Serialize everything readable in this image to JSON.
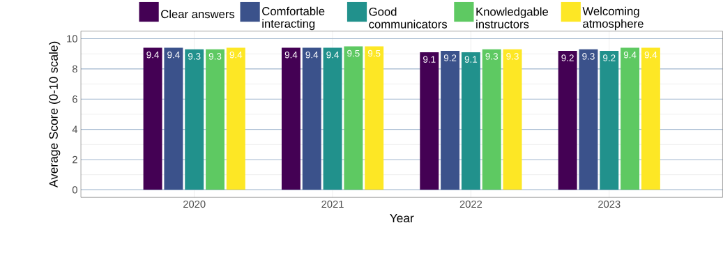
{
  "chart_data": {
    "type": "bar",
    "xlabel": "Year",
    "ylabel": "Average Score (0-10 scale)",
    "categories": [
      "2020",
      "2021",
      "2022",
      "2023"
    ],
    "series": [
      {
        "name": "Clear answers",
        "color": "#440154",
        "values": [
          9.4,
          9.4,
          9.1,
          9.2
        ]
      },
      {
        "name": "Comfortable interacting",
        "color": "#3b528b",
        "values": [
          9.4,
          9.4,
          9.2,
          9.3
        ]
      },
      {
        "name": "Good communicators",
        "color": "#21918c",
        "values": [
          9.3,
          9.4,
          9.1,
          9.2
        ]
      },
      {
        "name": "Knowledgable instructors",
        "color": "#5ec962",
        "values": [
          9.3,
          9.5,
          9.3,
          9.4
        ]
      },
      {
        "name": "Welcoming atmosphere",
        "color": "#fde725",
        "values": [
          9.4,
          9.5,
          9.3,
          9.4
        ]
      }
    ],
    "ylim": [
      -0.5,
      10.5
    ],
    "yticks": [
      0,
      2,
      4,
      6,
      8,
      10
    ],
    "grid": true,
    "legend": "top",
    "data_labels": true
  }
}
